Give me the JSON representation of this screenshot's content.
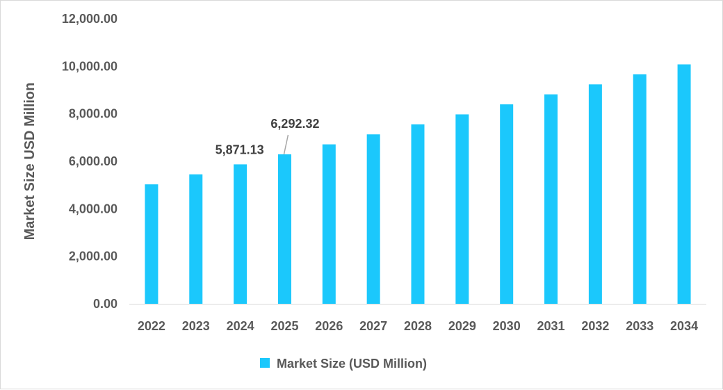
{
  "chart_data": {
    "type": "bar",
    "title": "",
    "xlabel": "",
    "ylabel": "Market Size USD Million",
    "ylim": [
      0,
      12000
    ],
    "yticks": [
      "0.00",
      "2,000.00",
      "4,000.00",
      "6,000.00",
      "8,000.00",
      "10,000.00",
      "12,000.00"
    ],
    "categories": [
      "2022",
      "2023",
      "2024",
      "2025",
      "2026",
      "2027",
      "2028",
      "2029",
      "2030",
      "2031",
      "2032",
      "2033",
      "2034"
    ],
    "series": [
      {
        "name": "Market Size (USD Million)",
        "color": "#1BC8FC",
        "values": [
          5029,
          5450,
          5871.13,
          6292.32,
          6713,
          7134,
          7555,
          7976,
          8397,
          8818,
          9239,
          9660,
          10081
        ]
      }
    ],
    "data_labels": [
      {
        "category": "2024",
        "text": "5,871.13"
      },
      {
        "category": "2025",
        "text": "6,292.32"
      }
    ],
    "grid": false,
    "legend_position": "bottom"
  }
}
